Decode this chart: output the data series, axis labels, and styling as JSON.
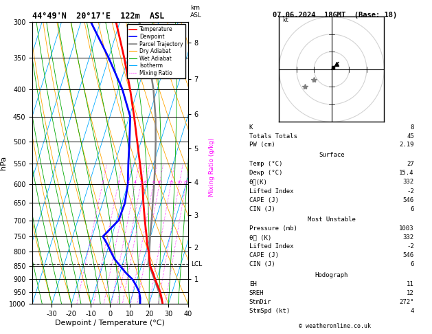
{
  "title_left": "44°49'N  20°17'E  122m  ASL",
  "title_right": "07.06.2024  18GMT  (Base: 18)",
  "xlabel": "Dewpoint / Temperature (°C)",
  "ylabel_left": "hPa",
  "pressure_levels": [
    300,
    350,
    400,
    450,
    500,
    550,
    600,
    650,
    700,
    750,
    800,
    850,
    900,
    950,
    1000
  ],
  "km_ticks": [
    1,
    2,
    3,
    4,
    5,
    6,
    7,
    8
  ],
  "km_pressures": [
    898,
    785,
    684,
    594,
    515,
    445,
    383,
    328
  ],
  "lcl_pressure": 843,
  "temp_profile": {
    "pressure": [
      1000,
      975,
      950,
      925,
      900,
      875,
      850,
      825,
      800,
      775,
      750,
      700,
      650,
      600,
      550,
      500,
      450,
      400,
      350,
      300
    ],
    "temperature": [
      27,
      25.5,
      23.8,
      21.5,
      19.2,
      17.0,
      14.5,
      13.0,
      11.5,
      9.5,
      8.0,
      4.5,
      1.0,
      -2.5,
      -7.0,
      -12.0,
      -17.5,
      -24.0,
      -32.0,
      -42.0
    ]
  },
  "dewpoint_profile": {
    "pressure": [
      1000,
      975,
      950,
      925,
      900,
      875,
      850,
      825,
      800,
      775,
      750,
      700,
      650,
      600,
      550,
      500,
      450,
      400,
      350,
      300
    ],
    "dewpoint": [
      15.4,
      14.5,
      13.0,
      10.5,
      7.5,
      3.0,
      -1.0,
      -5.0,
      -8.0,
      -11.0,
      -14.5,
      -9.0,
      -8.5,
      -10.0,
      -13.0,
      -16.0,
      -19.5,
      -28.0,
      -40.0,
      -55.0
    ]
  },
  "parcel_profile": {
    "pressure": [
      1000,
      975,
      950,
      925,
      900,
      875,
      850,
      843,
      800,
      750,
      700,
      650,
      600,
      550,
      500,
      450,
      400,
      350,
      300
    ],
    "temperature": [
      27,
      25.2,
      23.2,
      21.0,
      18.8,
      16.5,
      14.0,
      13.2,
      11.8,
      9.8,
      8.0,
      5.8,
      3.5,
      0.8,
      -2.5,
      -6.5,
      -12.0,
      -19.5,
      -30.0
    ]
  },
  "stats": {
    "K": 8,
    "Totals_Totals": 45,
    "PW_cm": 2.19,
    "Surface_Temp": 27,
    "Surface_Dewp": 15.4,
    "Surface_ThetaE": 332,
    "Surface_LI": -2,
    "Surface_CAPE": 546,
    "Surface_CIN": 6,
    "MU_Pressure": 1003,
    "MU_ThetaE": 332,
    "MU_LI": -2,
    "MU_CAPE": 546,
    "MU_CIN": 6,
    "EH": 11,
    "SREH": 12,
    "StmDir": 272,
    "StmSpd": 4
  },
  "colors": {
    "temperature": "#ff0000",
    "dewpoint": "#0000ff",
    "parcel": "#808080",
    "dry_adiabat": "#ffa500",
    "wet_adiabat": "#00aa00",
    "isotherm": "#00aaff",
    "mixing_ratio": "#ff00ff",
    "background": "#ffffff"
  }
}
